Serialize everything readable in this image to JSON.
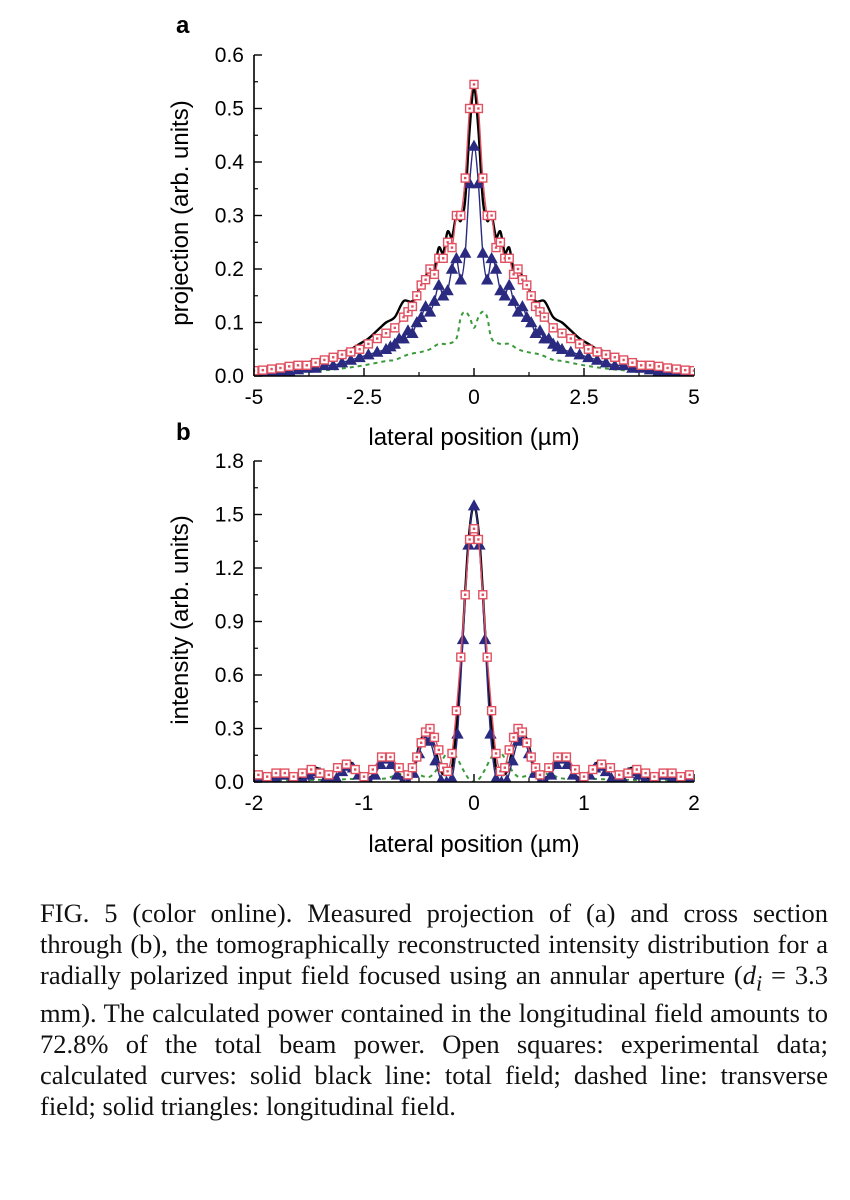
{
  "figure": {
    "colors": {
      "experimental": "#e05060",
      "total": "#000000",
      "transverse": "#3a9a3a",
      "longitudinal": "#2a2a80"
    }
  },
  "caption": {
    "part1": "FIG. 5 (color online).   Measured projection of (a) and cross section through (b), the tomographically reconstructed intensity distribution for a radially polarized input field focused using an annular aperture (",
    "var_d": "d",
    "var_sub": "i",
    "part2": " = 3.3 mm). The calculated power contained in the longitudinal field amounts to 72.8% of the total beam power. Open squares: experimental data; calculated curves: solid black line: total field; dashed line: transverse field; solid triangles: longitudinal field."
  },
  "chart_data": [
    {
      "panel": "a",
      "type": "line",
      "xlabel": "lateral position (µm)",
      "ylabel": "projection (arb. units)",
      "xlim": [
        -5,
        5
      ],
      "ylim": [
        0,
        0.6
      ],
      "xticks": [
        -5,
        -2.5,
        0,
        2.5,
        5
      ],
      "xtick_labels": [
        "-5",
        "-2.5",
        "0",
        "2.5",
        "5"
      ],
      "yticks": [
        0,
        0.1,
        0.2,
        0.3,
        0.4,
        0.5,
        0.6
      ],
      "ytick_labels": [
        "0.0",
        "0.1",
        "0.2",
        "0.3",
        "0.4",
        "0.5",
        "0.6"
      ],
      "grid": false,
      "series": [
        {
          "key": "total",
          "style": "solid-black",
          "x": [
            0,
            0.1,
            0.2,
            0.3,
            0.4,
            0.5,
            0.6,
            0.7,
            0.8,
            0.9,
            1.0,
            1.2,
            1.4,
            1.6,
            1.8,
            2.0,
            2.2,
            2.4,
            2.6,
            2.8,
            3.0,
            3.3,
            3.6,
            4.0,
            4.5,
            5.0
          ],
          "y": [
            0.54,
            0.46,
            0.33,
            0.29,
            0.3,
            0.26,
            0.27,
            0.23,
            0.24,
            0.2,
            0.2,
            0.17,
            0.14,
            0.14,
            0.11,
            0.1,
            0.085,
            0.07,
            0.06,
            0.05,
            0.045,
            0.035,
            0.03,
            0.02,
            0.015,
            0.01
          ]
        },
        {
          "key": "transverse",
          "style": "dashed",
          "x": [
            0,
            0.1,
            0.2,
            0.3,
            0.4,
            0.6,
            0.8,
            1.0,
            1.2,
            1.5,
            1.8,
            2.0,
            2.5,
            3.0,
            3.5,
            4.0,
            5.0
          ],
          "y": [
            0.09,
            0.11,
            0.12,
            0.11,
            0.07,
            0.06,
            0.06,
            0.05,
            0.045,
            0.04,
            0.03,
            0.028,
            0.02,
            0.014,
            0.01,
            0.008,
            0.005
          ]
        },
        {
          "key": "longitudinal",
          "style": "triangles",
          "x": [
            0,
            0.1,
            0.2,
            0.3,
            0.4,
            0.5,
            0.6,
            0.7,
            0.8,
            0.9,
            1.0,
            1.1,
            1.2,
            1.3,
            1.4,
            1.5,
            1.6,
            1.7,
            1.8,
            1.9,
            2.0,
            2.2,
            2.4,
            2.6,
            2.8,
            3.0,
            3.2,
            3.4,
            3.6,
            3.8,
            4.0,
            4.2,
            4.4,
            4.6,
            4.8,
            5.0
          ],
          "y": [
            0.43,
            0.36,
            0.23,
            0.18,
            0.22,
            0.2,
            0.16,
            0.15,
            0.17,
            0.14,
            0.12,
            0.13,
            0.11,
            0.1,
            0.08,
            0.085,
            0.07,
            0.07,
            0.06,
            0.055,
            0.05,
            0.045,
            0.04,
            0.035,
            0.03,
            0.025,
            0.02,
            0.02,
            0.015,
            0.015,
            0.012,
            0.01,
            0.01,
            0.01,
            0.008,
            0.007
          ]
        },
        {
          "key": "experimental",
          "style": "open-squares",
          "x": [
            0,
            0.1,
            0.2,
            0.3,
            0.4,
            0.5,
            0.6,
            0.7,
            0.8,
            0.9,
            1.0,
            1.1,
            1.2,
            1.3,
            1.4,
            1.5,
            1.6,
            1.8,
            2.0,
            2.2,
            2.4,
            2.6,
            2.8,
            3.0,
            3.2,
            3.4,
            3.6,
            3.8,
            4.0,
            4.2,
            4.4,
            4.6,
            4.8,
            5.0
          ],
          "y": [
            0.545,
            0.5,
            0.37,
            0.3,
            0.3,
            0.24,
            0.25,
            0.22,
            0.22,
            0.19,
            0.2,
            0.18,
            0.17,
            0.15,
            0.13,
            0.12,
            0.11,
            0.09,
            0.08,
            0.07,
            0.06,
            0.05,
            0.045,
            0.04,
            0.035,
            0.03,
            0.025,
            0.02,
            0.02,
            0.018,
            0.015,
            0.013,
            0.011,
            0.01
          ]
        }
      ]
    },
    {
      "panel": "b",
      "type": "line",
      "xlabel": "lateral position (µm)",
      "ylabel": "intensity (arb. units)",
      "xlim": [
        -2,
        2
      ],
      "ylim": [
        0,
        1.8
      ],
      "xticks": [
        -2,
        -1,
        0,
        1,
        2
      ],
      "xtick_labels": [
        "-2",
        "-1",
        "0",
        "1",
        "2"
      ],
      "yticks": [
        0,
        0.3,
        0.6,
        0.9,
        1.2,
        1.5,
        1.8
      ],
      "ytick_labels": [
        "0.0",
        "0.3",
        "0.6",
        "0.9",
        "1.2",
        "1.5",
        "1.8"
      ],
      "grid": false,
      "series": [
        {
          "key": "total",
          "style": "solid-black",
          "x": [
            0,
            0.05,
            0.1,
            0.15,
            0.2,
            0.25,
            0.3,
            0.35,
            0.4,
            0.45,
            0.5,
            0.55,
            0.6,
            0.65,
            0.7,
            0.75,
            0.8,
            0.85,
            0.9,
            0.95,
            1.0,
            1.05,
            1.1,
            1.15,
            1.2,
            1.25,
            1.3,
            1.35,
            1.4,
            1.45,
            1.5,
            1.55,
            1.6,
            1.65,
            1.7,
            1.75,
            1.8,
            1.85,
            1.9,
            1.95,
            2.0
          ],
          "y": [
            1.55,
            1.35,
            0.85,
            0.38,
            0.08,
            0.04,
            0.06,
            0.18,
            0.27,
            0.28,
            0.2,
            0.08,
            0.03,
            0.02,
            0.06,
            0.12,
            0.15,
            0.12,
            0.06,
            0.02,
            0.02,
            0.06,
            0.1,
            0.11,
            0.07,
            0.03,
            0.02,
            0.04,
            0.07,
            0.08,
            0.06,
            0.03,
            0.02,
            0.03,
            0.06,
            0.06,
            0.04,
            0.02,
            0.02,
            0.04,
            0.05
          ]
        },
        {
          "key": "transverse",
          "style": "dashed",
          "x": [
            0,
            0.05,
            0.1,
            0.15,
            0.2,
            0.25,
            0.3,
            0.35,
            0.4,
            0.45,
            0.5,
            0.6,
            0.7,
            0.8,
            0.9,
            1.0,
            1.2,
            1.4,
            1.6,
            1.8,
            2.0
          ],
          "y": [
            0.0,
            0.02,
            0.07,
            0.13,
            0.17,
            0.16,
            0.11,
            0.06,
            0.03,
            0.03,
            0.04,
            0.05,
            0.04,
            0.02,
            0.02,
            0.02,
            0.015,
            0.012,
            0.01,
            0.01,
            0.008
          ]
        },
        {
          "key": "longitudinal",
          "style": "triangles",
          "x": [
            0,
            0.05,
            0.1,
            0.15,
            0.2,
            0.25,
            0.3,
            0.35,
            0.4,
            0.45,
            0.5,
            0.55,
            0.6,
            0.65,
            0.7,
            0.75,
            0.8,
            0.85,
            0.9,
            0.95,
            1.0,
            1.05,
            1.1,
            1.15,
            1.2,
            1.25,
            1.3,
            1.35,
            1.4,
            1.45,
            1.5,
            1.55,
            1.6,
            1.65,
            1.7,
            1.75,
            1.8,
            1.85,
            1.9,
            1.95,
            2.0
          ],
          "y": [
            1.55,
            1.33,
            0.8,
            0.27,
            0.02,
            0.0,
            0.01,
            0.12,
            0.23,
            0.24,
            0.16,
            0.05,
            0.0,
            0.0,
            0.04,
            0.1,
            0.13,
            0.1,
            0.04,
            0.0,
            0.0,
            0.04,
            0.08,
            0.09,
            0.06,
            0.02,
            0.0,
            0.02,
            0.05,
            0.06,
            0.04,
            0.01,
            0.0,
            0.02,
            0.04,
            0.04,
            0.02,
            0.0,
            0.01,
            0.02,
            0.03
          ]
        },
        {
          "key": "experimental",
          "style": "open-squares",
          "x": [
            0,
            0.04,
            0.08,
            0.12,
            0.16,
            0.2,
            0.24,
            0.28,
            0.32,
            0.36,
            0.4,
            0.44,
            0.48,
            0.52,
            0.56,
            0.6,
            0.68,
            0.76,
            0.84,
            0.92,
            1.0,
            1.08,
            1.16,
            1.24,
            1.32,
            1.4,
            1.48,
            1.56,
            1.64,
            1.72,
            1.8,
            1.88,
            1.96
          ],
          "y": [
            1.42,
            1.36,
            1.05,
            0.7,
            0.4,
            0.16,
            0.06,
            0.08,
            0.18,
            0.25,
            0.3,
            0.28,
            0.22,
            0.14,
            0.08,
            0.04,
            0.08,
            0.14,
            0.14,
            0.07,
            0.03,
            0.07,
            0.1,
            0.08,
            0.04,
            0.05,
            0.07,
            0.05,
            0.03,
            0.05,
            0.05,
            0.03,
            0.04
          ]
        }
      ]
    }
  ]
}
